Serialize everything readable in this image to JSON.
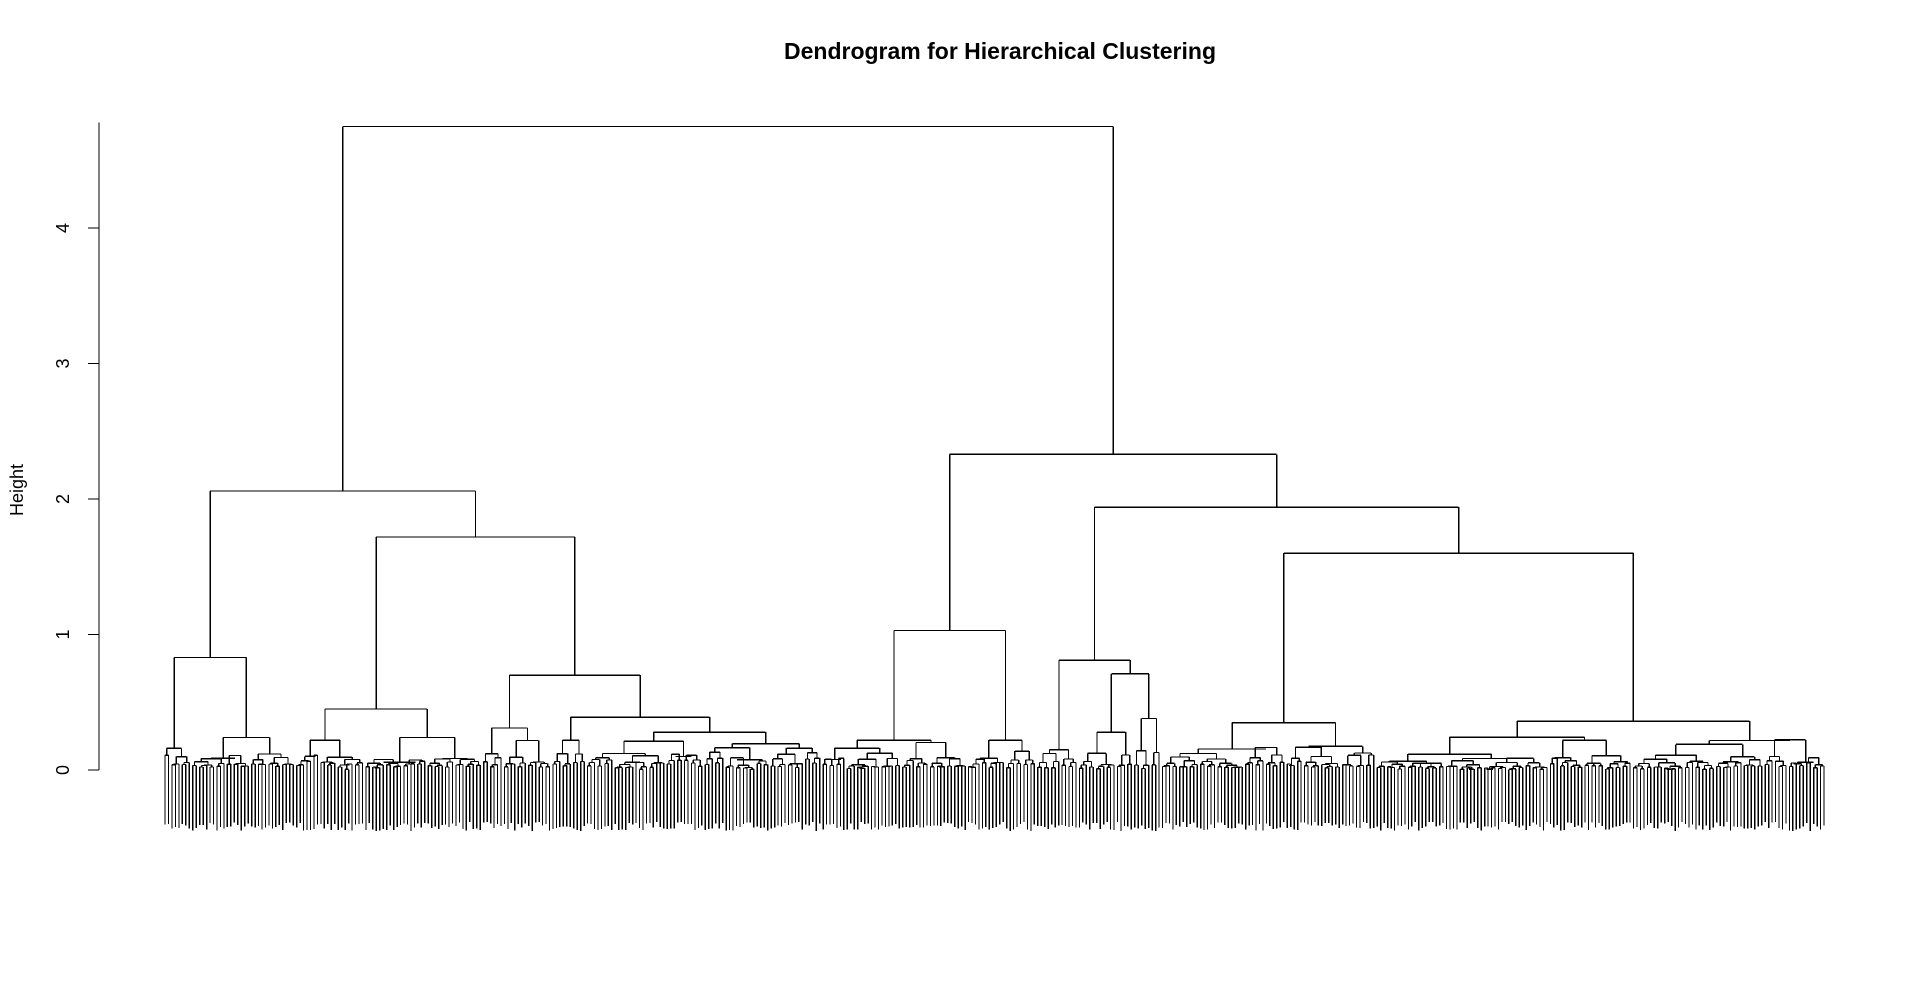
{
  "chart_data": {
    "type": "dendrogram",
    "title": "Dendrogram for Hierarchical Clustering",
    "xlabel": "",
    "ylabel": "Height",
    "ylim": [
      0,
      4.75
    ],
    "y_ticks": [
      0,
      1,
      2,
      3,
      4
    ],
    "leaf_count": 480,
    "leaf_hang_depth": 0.45,
    "root_height": 4.75,
    "clusters": [
      {
        "id": "root",
        "height": 4.75,
        "children": [
          "L",
          "R"
        ]
      },
      {
        "id": "L",
        "height": 2.06,
        "children": [
          "LL",
          "LR"
        ]
      },
      {
        "id": "LL",
        "height": 0.83,
        "children": [
          "LLa",
          "LLb"
        ]
      },
      {
        "id": "LLa",
        "height": 0.16,
        "leaves": 8,
        "sub": [
          0.1,
          0.06,
          0.04
        ]
      },
      {
        "id": "LLb",
        "height": 0.24,
        "leaves": 30,
        "sub": [
          0.15,
          0.1,
          0.06,
          0.04,
          0.03
        ]
      },
      {
        "id": "LR",
        "height": 1.72,
        "children": [
          "LRa",
          "LRb"
        ]
      },
      {
        "id": "LRa",
        "height": 0.45,
        "children": [
          "LRa1",
          "LRa2"
        ]
      },
      {
        "id": "LRa1",
        "height": 0.22,
        "leaves": 20,
        "sub": [
          0.17,
          0.1,
          0.06,
          0.04
        ]
      },
      {
        "id": "LRa2",
        "height": 0.24,
        "leaves": 34,
        "sub": [
          0.1,
          0.08,
          0.06,
          0.04,
          0.03
        ]
      },
      {
        "id": "LRb",
        "height": 0.7,
        "children": [
          "LRb1",
          "LRb2"
        ]
      },
      {
        "id": "LRb1",
        "height": 0.31,
        "leaves": 20,
        "sub": [
          0.19,
          0.1,
          0.06,
          0.04
        ]
      },
      {
        "id": "LRb2",
        "height": 0.39,
        "children": [
          "LRb2a",
          "LRb2b"
        ]
      },
      {
        "id": "LRb2a",
        "height": 0.22,
        "leaves": 10,
        "sub": [
          0.12,
          0.06,
          0.04
        ]
      },
      {
        "id": "LRb2b",
        "height": 0.28,
        "leaves": 68,
        "sub": [
          0.19,
          0.16,
          0.12,
          0.08,
          0.05,
          0.03
        ]
      },
      {
        "id": "R",
        "height": 2.33,
        "children": [
          "RL",
          "RR"
        ]
      },
      {
        "id": "RL",
        "height": 1.03,
        "children": [
          "RLa",
          "RLb"
        ]
      },
      {
        "id": "RLa",
        "height": 0.22,
        "leaves": 42,
        "sub": [
          0.2,
          0.12,
          0.08,
          0.04,
          0.03
        ]
      },
      {
        "id": "RLb",
        "height": 0.22,
        "leaves": 20,
        "sub": [
          0.14,
          0.08,
          0.05,
          0.03
        ]
      },
      {
        "id": "RR",
        "height": 1.94,
        "children": [
          "RRa",
          "RRb"
        ]
      },
      {
        "id": "RRa",
        "height": 0.81,
        "children": [
          "RRa1",
          "RRa2"
        ]
      },
      {
        "id": "RRa1",
        "height": 0.15,
        "leaves": 12,
        "sub": [
          0.11,
          0.06,
          0.03
        ]
      },
      {
        "id": "RRa2",
        "height": 0.71,
        "children": [
          "RRa2a",
          "RRa2b"
        ]
      },
      {
        "id": "RRa2a",
        "height": 0.28,
        "leaves": 16,
        "sub": [
          0.11,
          0.06,
          0.04
        ]
      },
      {
        "id": "RRa2b",
        "height": 0.38,
        "leaves": 8,
        "sub": [
          0.14,
          0.06
        ]
      },
      {
        "id": "RRb",
        "height": 1.6,
        "children": [
          "RRb1",
          "RRb2"
        ]
      },
      {
        "id": "RRb1",
        "height": 0.35,
        "leaves": 62,
        "sub": [
          0.24,
          0.19,
          0.1,
          0.06,
          0.04,
          0.03
        ]
      },
      {
        "id": "RRb2",
        "height": 0.36,
        "leaves": 130,
        "sub": [
          0.27,
          0.2,
          0.1,
          0.08,
          0.05,
          0.03
        ]
      }
    ]
  }
}
